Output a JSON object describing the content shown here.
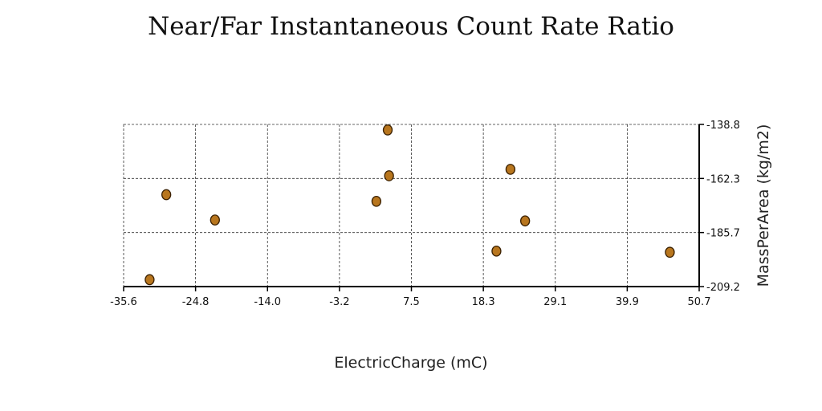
{
  "chart_data": {
    "type": "scatter",
    "title": "Near/Far Instantaneous Count Rate Ratio",
    "xlabel": "ElectricCharge (mC)",
    "ylabel": "MassPerArea (kg/m2)",
    "xlim": [
      -35.6,
      50.7
    ],
    "ylim": [
      -209.2,
      -138.8
    ],
    "x_ticks": [
      "-35.6",
      "-24.8",
      "-14.0",
      "-3.2",
      "7.5",
      "18.3",
      "29.1",
      "39.9",
      "50.7"
    ],
    "y_ticks": [
      "-138.8",
      "-162.3",
      "-185.7",
      "-209.2"
    ],
    "y_axis_side": "right",
    "grid": true,
    "marker_color": "#b8761e",
    "points": [
      {
        "x": -31.7,
        "y": -206.2
      },
      {
        "x": -29.2,
        "y": -169.3
      },
      {
        "x": -21.9,
        "y": -180.3
      },
      {
        "x": 2.3,
        "y": -172.2
      },
      {
        "x": 4.0,
        "y": -141.2
      },
      {
        "x": 4.2,
        "y": -161.1
      },
      {
        "x": 20.3,
        "y": -193.8
      },
      {
        "x": 22.4,
        "y": -158.3
      },
      {
        "x": 24.6,
        "y": -180.7
      },
      {
        "x": 46.3,
        "y": -194.3
      }
    ]
  }
}
